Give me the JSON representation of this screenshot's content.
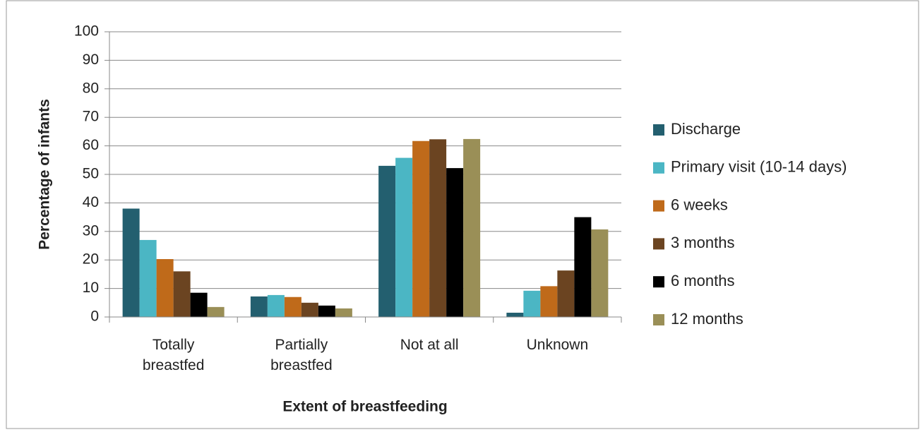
{
  "chart_data": {
    "type": "bar",
    "x_label": "Extent of breastfeeding",
    "y_label": "Percentage of infants",
    "categories": [
      "Totally breastfed",
      "Partially breastfed",
      "Not at all",
      "Unknown"
    ],
    "series": [
      {
        "name": "Discharge",
        "color": "#235f6f",
        "values": [
          38,
          7.2,
          53,
          1.5
        ]
      },
      {
        "name": "Primary visit (10-14 days)",
        "color": "#4bb6c4",
        "values": [
          27,
          7.7,
          55.8,
          9.2
        ]
      },
      {
        "name": "6 weeks",
        "color": "#bf6a1a",
        "values": [
          20.3,
          7,
          61.7,
          10.8
        ]
      },
      {
        "name": "3 months",
        "color": "#6b4421",
        "values": [
          16,
          5,
          62.3,
          16.3
        ]
      },
      {
        "name": "6 months",
        "color": "#000000",
        "values": [
          8.5,
          4,
          52.2,
          35
        ]
      },
      {
        "name": "12 months",
        "color": "#9a8f57",
        "values": [
          3.5,
          3,
          62.4,
          30.7
        ]
      }
    ],
    "ylim": [
      0,
      100
    ],
    "yticks": [
      0,
      10,
      20,
      30,
      40,
      50,
      60,
      70,
      80,
      90,
      100
    ],
    "grid": true,
    "legend": "right"
  }
}
